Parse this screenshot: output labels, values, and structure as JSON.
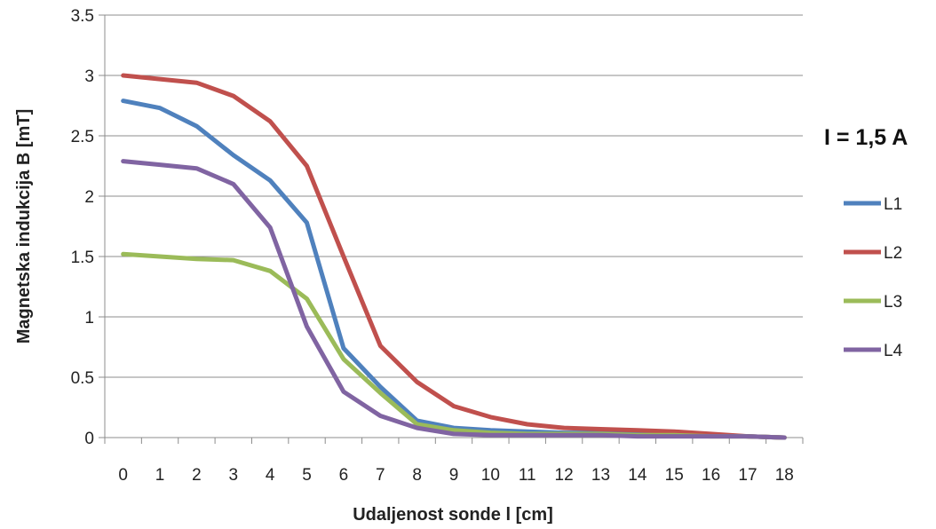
{
  "chart_data": {
    "type": "line",
    "title": "",
    "xlabel": "Udaljenost sonde l [cm]",
    "ylabel": "Magnetska  indukcija B [mT]",
    "categories": [
      "0",
      "1",
      "2",
      "3",
      "4",
      "5",
      "6",
      "7",
      "8",
      "9",
      "10",
      "11",
      "12",
      "13",
      "14",
      "15",
      "16",
      "17",
      "18"
    ],
    "ylim": [
      0,
      3.5
    ],
    "yticks": [
      "0",
      "0.5",
      "1",
      "1.5",
      "2",
      "2.5",
      "3",
      "3.5"
    ],
    "grid": "horizontal",
    "legend_title": "I = 1,5 A",
    "legend_position": "right",
    "series": [
      {
        "name": "L1",
        "color": "#4f81bd",
        "values": [
          2.79,
          2.73,
          2.58,
          2.34,
          2.13,
          1.78,
          0.74,
          0.42,
          0.14,
          0.08,
          0.06,
          0.05,
          0.04,
          0.04,
          0.03,
          0.02,
          0.02,
          0.01,
          0.0
        ]
      },
      {
        "name": "L2",
        "color": "#c0504d",
        "values": [
          3.0,
          2.97,
          2.94,
          2.83,
          2.62,
          2.25,
          1.5,
          0.76,
          0.46,
          0.26,
          0.17,
          0.11,
          0.08,
          0.07,
          0.06,
          0.05,
          0.03,
          0.01,
          0.0
        ]
      },
      {
        "name": "L3",
        "color": "#9bbb59",
        "values": [
          1.52,
          1.5,
          1.48,
          1.47,
          1.38,
          1.15,
          0.65,
          0.37,
          0.11,
          0.06,
          0.04,
          0.03,
          0.03,
          0.03,
          0.02,
          0.02,
          0.01,
          0.01,
          0.0
        ]
      },
      {
        "name": "L4",
        "color": "#8064a2",
        "values": [
          2.29,
          2.26,
          2.23,
          2.1,
          1.74,
          0.92,
          0.38,
          0.18,
          0.08,
          0.03,
          0.02,
          0.02,
          0.02,
          0.02,
          0.01,
          0.01,
          0.01,
          0.01,
          0.0
        ]
      }
    ]
  }
}
